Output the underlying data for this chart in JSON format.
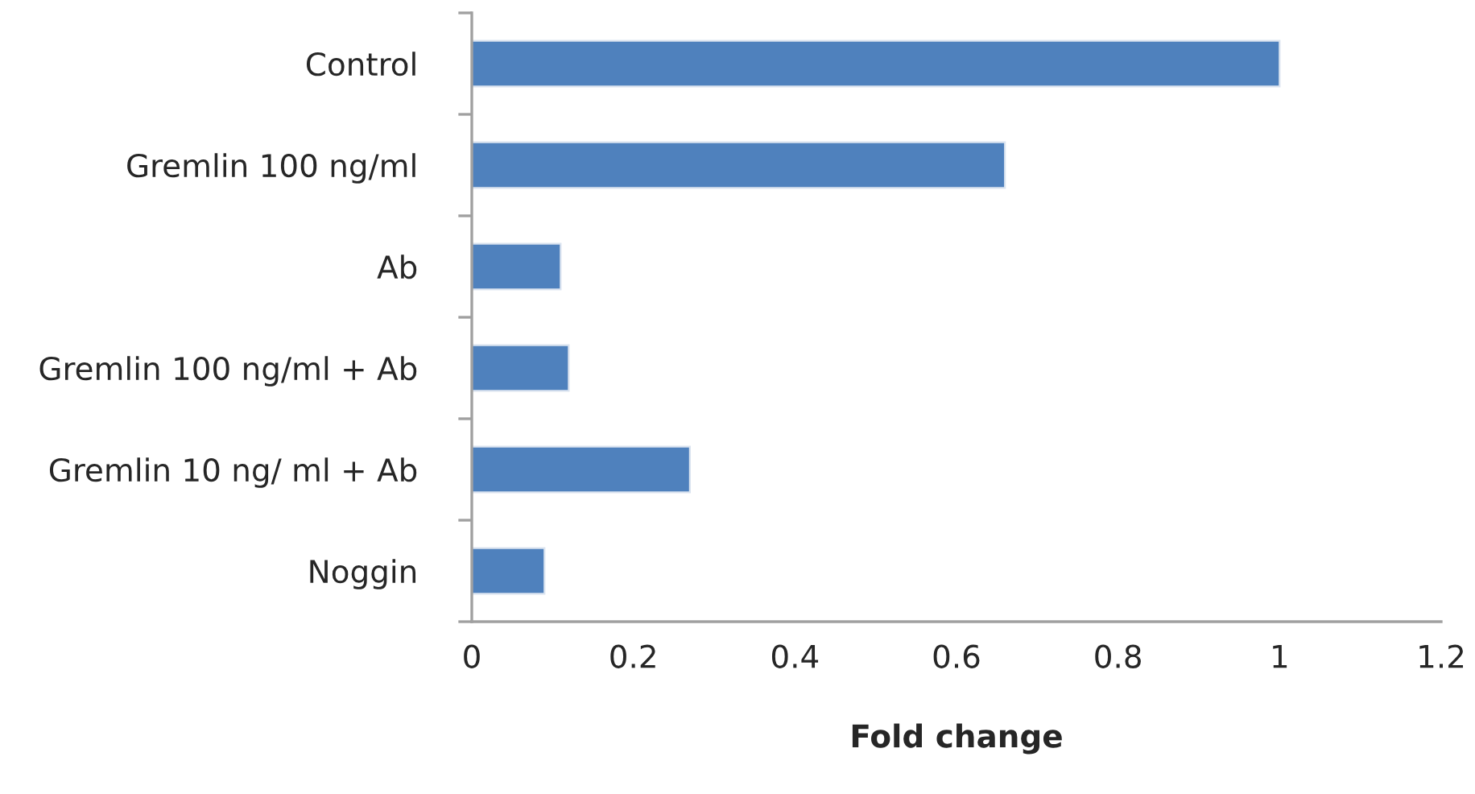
{
  "chart_data": {
    "type": "bar",
    "orientation": "horizontal",
    "xlabel": "Fold change",
    "categories": [
      "Control",
      "Gremlin 100 ng/ml",
      "Ab",
      "Gremlin 100 ng/ml + Ab",
      "Gremlin 10 ng/ ml + Ab",
      "Noggin"
    ],
    "values": [
      1.0,
      0.66,
      0.11,
      0.12,
      0.27,
      0.09
    ],
    "color": "#4f81bd",
    "xlim": [
      0,
      1.2
    ],
    "xticks": [
      0,
      0.2,
      0.4,
      0.6,
      0.8,
      1,
      1.2
    ],
    "grid": false,
    "legend": false
  }
}
